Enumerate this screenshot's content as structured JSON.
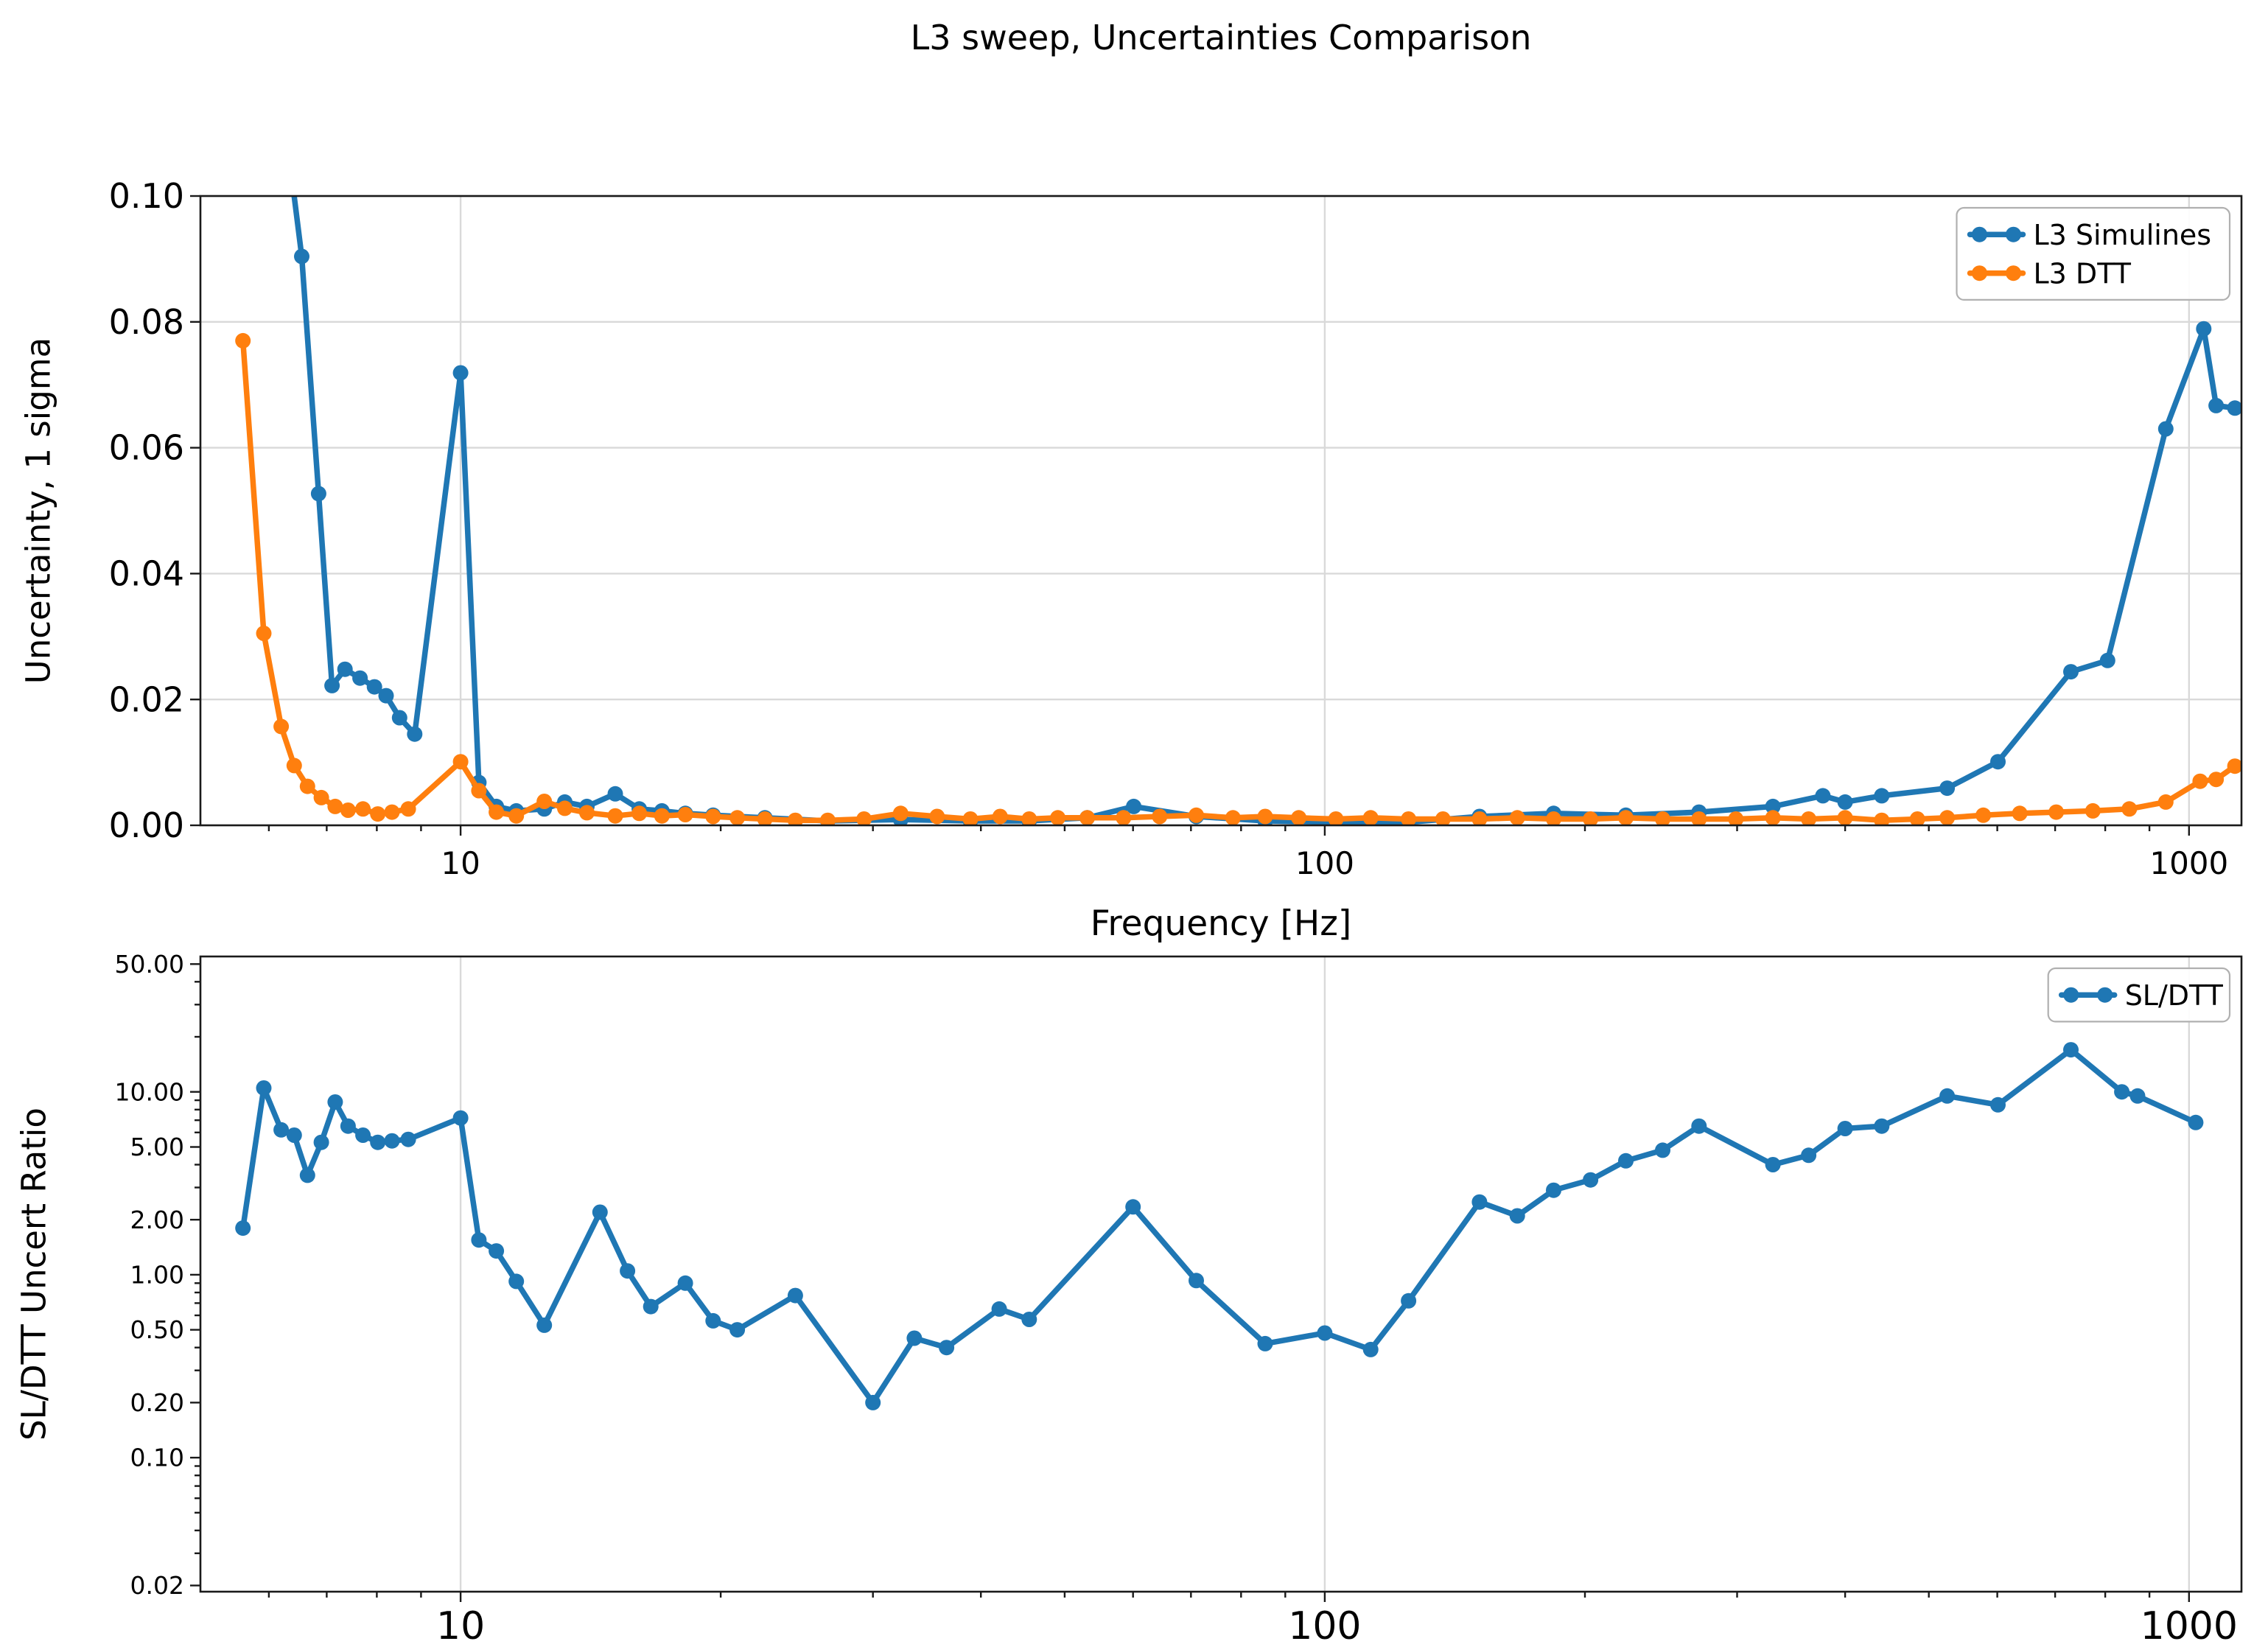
{
  "figure_title": "L3 sweep, Uncertainties Comparison",
  "colors": {
    "series_blue": "#1f77b4",
    "series_orange": "#ff7f0e",
    "grid": "#d9d9d9",
    "frame": "#1a1a1a",
    "legend_border": "#b0b0b0",
    "text": "#000000"
  },
  "chart_data": [
    {
      "type": "line",
      "title": "L3 sweep, Uncertainties Comparison",
      "xlabel": "Frequency [Hz]",
      "ylabel": "Uncertainty, 1 sigma",
      "xscale": "log",
      "yscale": "linear",
      "xlim": [
        5.0,
        1150
      ],
      "ylim": [
        0,
        0.1
      ],
      "grid": {
        "x": true,
        "y": true
      },
      "xticks": {
        "values": [
          10,
          100,
          1000
        ],
        "labels": [
          "10",
          "100",
          "1000"
        ]
      },
      "yticks": {
        "values": [
          0,
          0.02,
          0.04,
          0.06,
          0.08,
          0.1
        ],
        "labels": [
          "0.00",
          "0.02",
          "0.04",
          "0.06",
          "0.08",
          "0.10"
        ]
      },
      "legend": {
        "position": "upper-right",
        "entries": [
          "L3 Simulines",
          "L3 DTT"
        ]
      },
      "series": [
        {
          "name": "L3 Simulines",
          "color": "#1f77b4",
          "x": [
            5.9,
            6.55,
            6.85,
            7.1,
            7.35,
            7.65,
            7.95,
            8.2,
            8.5,
            8.85,
            10.0,
            10.5,
            11.0,
            11.6,
            12.5,
            13.2,
            14.0,
            15.1,
            16.1,
            17.1,
            18.2,
            19.6,
            22.5,
            26.6,
            32.3,
            38.9,
            45.5,
            53.1,
            60.1,
            71.0,
            85.3,
            103,
            125,
            151,
            184,
            223,
            271,
            330,
            377,
            400,
            441,
            525,
            601,
            730,
            805,
            940,
            1040,
            1075,
            1130
          ],
          "y": [
            0.14,
            0.0904,
            0.0527,
            0.0222,
            0.0248,
            0.0234,
            0.022,
            0.0206,
            0.0171,
            0.0145,
            0.0719,
            0.0068,
            0.003,
            0.0023,
            0.0026,
            0.0037,
            0.003,
            0.005,
            0.0026,
            0.0023,
            0.0019,
            0.0016,
            0.0012,
            0.0007,
            0.0009,
            0.0007,
            0.0007,
            0.0012,
            0.003,
            0.0014,
            0.0007,
            0.0005,
            0.0005,
            0.0014,
            0.0019,
            0.0016,
            0.0021,
            0.003,
            0.0047,
            0.0037,
            0.0047,
            0.0059,
            0.0101,
            0.0244,
            0.0262,
            0.063,
            0.0789,
            0.0667,
            0.0663
          ]
        },
        {
          "name": "L3 DTT",
          "color": "#ff7f0e",
          "x": [
            5.6,
            5.92,
            6.2,
            6.42,
            6.65,
            6.9,
            7.16,
            7.41,
            7.71,
            8.02,
            8.33,
            8.7,
            10.0,
            10.5,
            11.0,
            11.6,
            12.5,
            13.2,
            14.0,
            15.1,
            16.1,
            17.1,
            18.2,
            19.6,
            20.9,
            22.5,
            24.4,
            26.6,
            29.3,
            32.3,
            35.6,
            38.9,
            42.1,
            45.5,
            49.1,
            53.1,
            58.5,
            64.4,
            71.0,
            78.3,
            85.3,
            93.3,
            103,
            113,
            125,
            137,
            151,
            167,
            184,
            203,
            223,
            246,
            271,
            299,
            330,
            363,
            400,
            441,
            485,
            525,
            578,
            637,
            702,
            774,
            853,
            940,
            1030,
            1075,
            1130
          ],
          "y": [
            0.077,
            0.0305,
            0.0157,
            0.0095,
            0.0062,
            0.0044,
            0.003,
            0.0024,
            0.0026,
            0.0018,
            0.0021,
            0.0026,
            0.0101,
            0.0055,
            0.0021,
            0.0015,
            0.0038,
            0.0027,
            0.002,
            0.0015,
            0.0019,
            0.0015,
            0.0017,
            0.0014,
            0.0012,
            0.001,
            0.0008,
            0.0008,
            0.001,
            0.0019,
            0.0014,
            0.001,
            0.0014,
            0.001,
            0.0012,
            0.0012,
            0.0012,
            0.0014,
            0.0016,
            0.0012,
            0.0014,
            0.0012,
            0.001,
            0.0012,
            0.001,
            0.001,
            0.001,
            0.0012,
            0.001,
            0.001,
            0.0012,
            0.001,
            0.001,
            0.001,
            0.0012,
            0.001,
            0.0012,
            0.0008,
            0.001,
            0.0012,
            0.0016,
            0.0019,
            0.0021,
            0.0023,
            0.0026,
            0.0037,
            0.007,
            0.0073,
            0.0094
          ]
        }
      ]
    },
    {
      "type": "line",
      "title": "",
      "xlabel": "",
      "ylabel": "SL/DTT Uncert Ratio",
      "xscale": "log",
      "yscale": "log",
      "xlim": [
        5.0,
        1150
      ],
      "ylim": [
        0.0185,
        55
      ],
      "grid": {
        "x": true,
        "y": false
      },
      "xticks": {
        "values": [
          10,
          100,
          1000
        ],
        "labels": [
          "10",
          "100",
          "1000"
        ]
      },
      "yticks": {
        "values": [
          50,
          10,
          5,
          2,
          1,
          0.5,
          0.2,
          0.1,
          0.02
        ],
        "labels": [
          "50.00",
          "10.00",
          "5.00",
          "2.00",
          "1.00",
          "0.50",
          "0.20",
          "0.10",
          "0.02"
        ]
      },
      "legend": {
        "position": "upper-right",
        "entries": [
          "SL/DTT"
        ]
      },
      "series": [
        {
          "name": "SL/DTT",
          "color": "#1f77b4",
          "x": [
            5.6,
            5.92,
            6.2,
            6.42,
            6.65,
            6.9,
            7.16,
            7.41,
            7.71,
            8.02,
            8.33,
            8.7,
            10.0,
            10.5,
            11.0,
            11.6,
            12.5,
            14.5,
            15.6,
            16.6,
            18.2,
            19.6,
            20.9,
            24.4,
            30.0,
            33.5,
            36.5,
            42.0,
            45.5,
            60.0,
            71.0,
            85.3,
            100.0,
            113.0,
            125.0,
            151.0,
            167.0,
            184.0,
            203.0,
            223.0,
            246.0,
            271.0,
            330.0,
            363.0,
            400.0,
            441.0,
            525.0,
            601.0,
            730.0,
            836.0,
            872.0,
            1018.0
          ],
          "y": [
            1.8,
            10.5,
            6.2,
            5.8,
            3.5,
            5.3,
            8.8,
            6.5,
            5.8,
            5.3,
            5.4,
            5.5,
            7.2,
            1.55,
            1.35,
            0.92,
            0.53,
            2.2,
            1.05,
            0.67,
            0.9,
            0.56,
            0.5,
            0.77,
            0.2,
            0.45,
            0.4,
            0.65,
            0.57,
            2.35,
            0.93,
            0.42,
            0.48,
            0.39,
            0.72,
            2.5,
            2.1,
            2.9,
            3.3,
            4.2,
            4.8,
            6.5,
            4.0,
            4.5,
            6.3,
            6.5,
            9.5,
            8.5,
            17.0,
            10.0,
            9.5,
            6.8
          ]
        }
      ]
    }
  ]
}
